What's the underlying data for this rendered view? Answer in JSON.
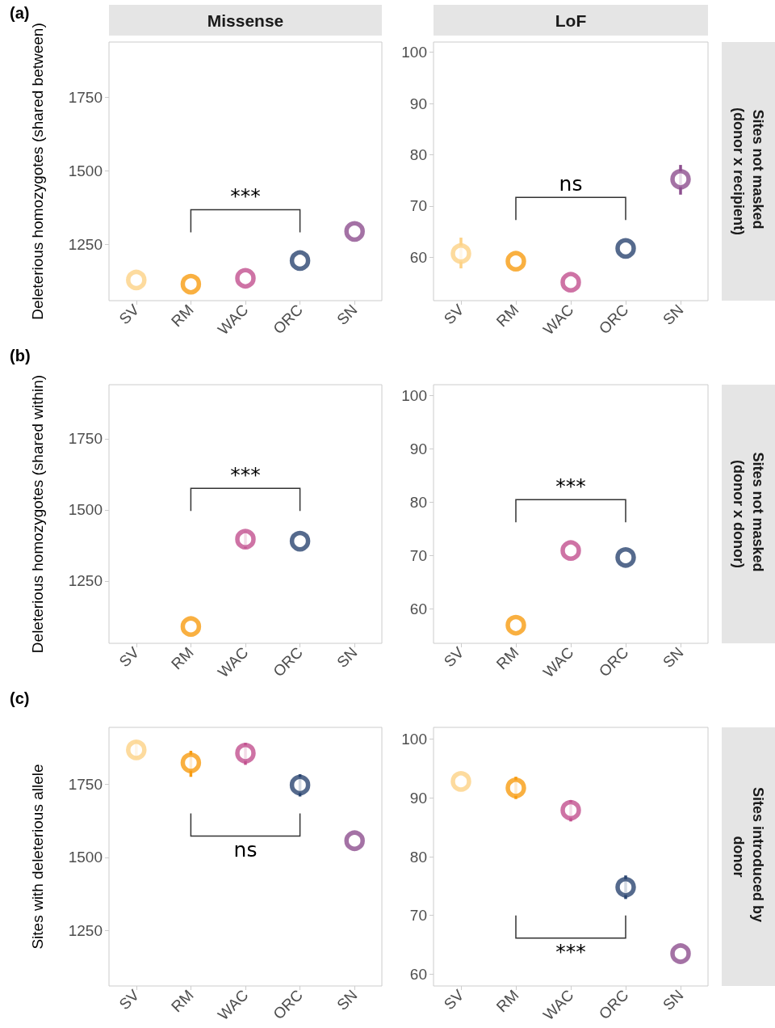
{
  "chart_data": [
    {
      "type": "scatter",
      "title": "Missense",
      "ylabel": "Deleterious homozygotes (shared between)",
      "categories": [
        "SV",
        "RM",
        "WAC",
        "ORC",
        "SN"
      ],
      "values": [
        1129,
        1115,
        1135,
        1195,
        1294
      ],
      "colors": [
        "#fdd286",
        "#f89c12",
        "#c2508e",
        "#2a4570",
        "#8d4f8f"
      ],
      "ylim": [
        1059,
        1937
      ],
      "yticks": [
        1250,
        1500,
        1750
      ],
      "marker": "circle",
      "annotations": [
        "(a)",
        "***"
      ]
    },
    {
      "type": "scatter",
      "title": "LoF",
      "y2label": "Sites not masked (donor x recipient)",
      "categories": [
        "SV",
        "RM",
        "WAC",
        "ORC",
        "SN"
      ],
      "values": [
        60.7,
        59.2,
        55.1,
        61.7,
        75.2
      ],
      "errors": [
        [
          57.8,
          63.8
        ],
        null,
        null,
        null,
        [
          72.2,
          78.0
        ]
      ],
      "colors": [
        "#fdd286",
        "#f89c12",
        "#c2508e",
        "#2a4570",
        "#8d4f8f"
      ],
      "ylim": [
        51.5,
        102
      ],
      "yticks": [
        60,
        70,
        80,
        90,
        100
      ],
      "marker": "circle",
      "annotations": [
        "ns"
      ]
    },
    {
      "type": "scatter",
      "ylabel": "Deleterious homozygotes (shared within)",
      "categories": [
        "SV",
        "RM",
        "WAC",
        "ORC",
        "SN"
      ],
      "values": [
        null,
        1090,
        1397,
        1390,
        null
      ],
      "errors": [
        null,
        null,
        [
          1365,
          1425
        ],
        null,
        null
      ],
      "colors": [
        "#fdd286",
        "#f89c12",
        "#c2508e",
        "#2a4570",
        "#8d4f8f"
      ],
      "ylim": [
        1031,
        1940
      ],
      "yticks": [
        1250,
        1500,
        1750
      ],
      "marker": "circle",
      "annotations": [
        "(b)",
        "***"
      ]
    },
    {
      "type": "scatter",
      "y2label": "Sites not masked (donor x donor)",
      "categories": [
        "SV",
        "RM",
        "WAC",
        "ORC",
        "SN"
      ],
      "values": [
        null,
        56.9,
        70.9,
        69.6,
        null
      ],
      "colors": [
        "#fdd286",
        "#f89c12",
        "#c2508e",
        "#2a4570",
        "#8d4f8f"
      ],
      "ylim": [
        53.5,
        102
      ],
      "yticks": [
        60,
        70,
        80,
        90,
        100
      ],
      "marker": "circle",
      "annotations": [
        "***"
      ]
    },
    {
      "type": "scatter",
      "ylabel": "Sites with deleterious allele",
      "categories": [
        "SV",
        "RM",
        "WAC",
        "ORC",
        "SN"
      ],
      "values": [
        1867,
        1823,
        1856,
        1747,
        1557
      ],
      "errors": [
        [
          1840,
          1895
        ],
        [
          1775,
          1864
        ],
        [
          1816,
          1891
        ],
        [
          1708,
          1784
        ],
        null
      ],
      "colors": [
        "#fdd286",
        "#f89c12",
        "#c2508e",
        "#2a4570",
        "#8d4f8f"
      ],
      "ylim": [
        1061,
        1944
      ],
      "yticks": [
        1250,
        1500,
        1750
      ],
      "marker": "circle",
      "annotations": [
        "(c)",
        "ns"
      ]
    },
    {
      "type": "scatter",
      "y2label": "Sites introduced by donor",
      "categories": [
        "SV",
        "RM",
        "WAC",
        "ORC",
        "SN"
      ],
      "values": [
        92.8,
        91.7,
        87.9,
        74.8,
        63.5
      ],
      "errors": [
        null,
        [
          89.8,
          93.6
        ],
        [
          86.0,
          89.6
        ],
        [
          72.8,
          76.8
        ],
        null
      ],
      "colors": [
        "#fdd286",
        "#f89c12",
        "#c2508e",
        "#2a4570",
        "#8d4f8f"
      ],
      "ylim": [
        58,
        102
      ],
      "yticks": [
        60,
        70,
        80,
        90,
        100
      ],
      "marker": "circle",
      "annotations": [
        "***"
      ]
    }
  ]
}
